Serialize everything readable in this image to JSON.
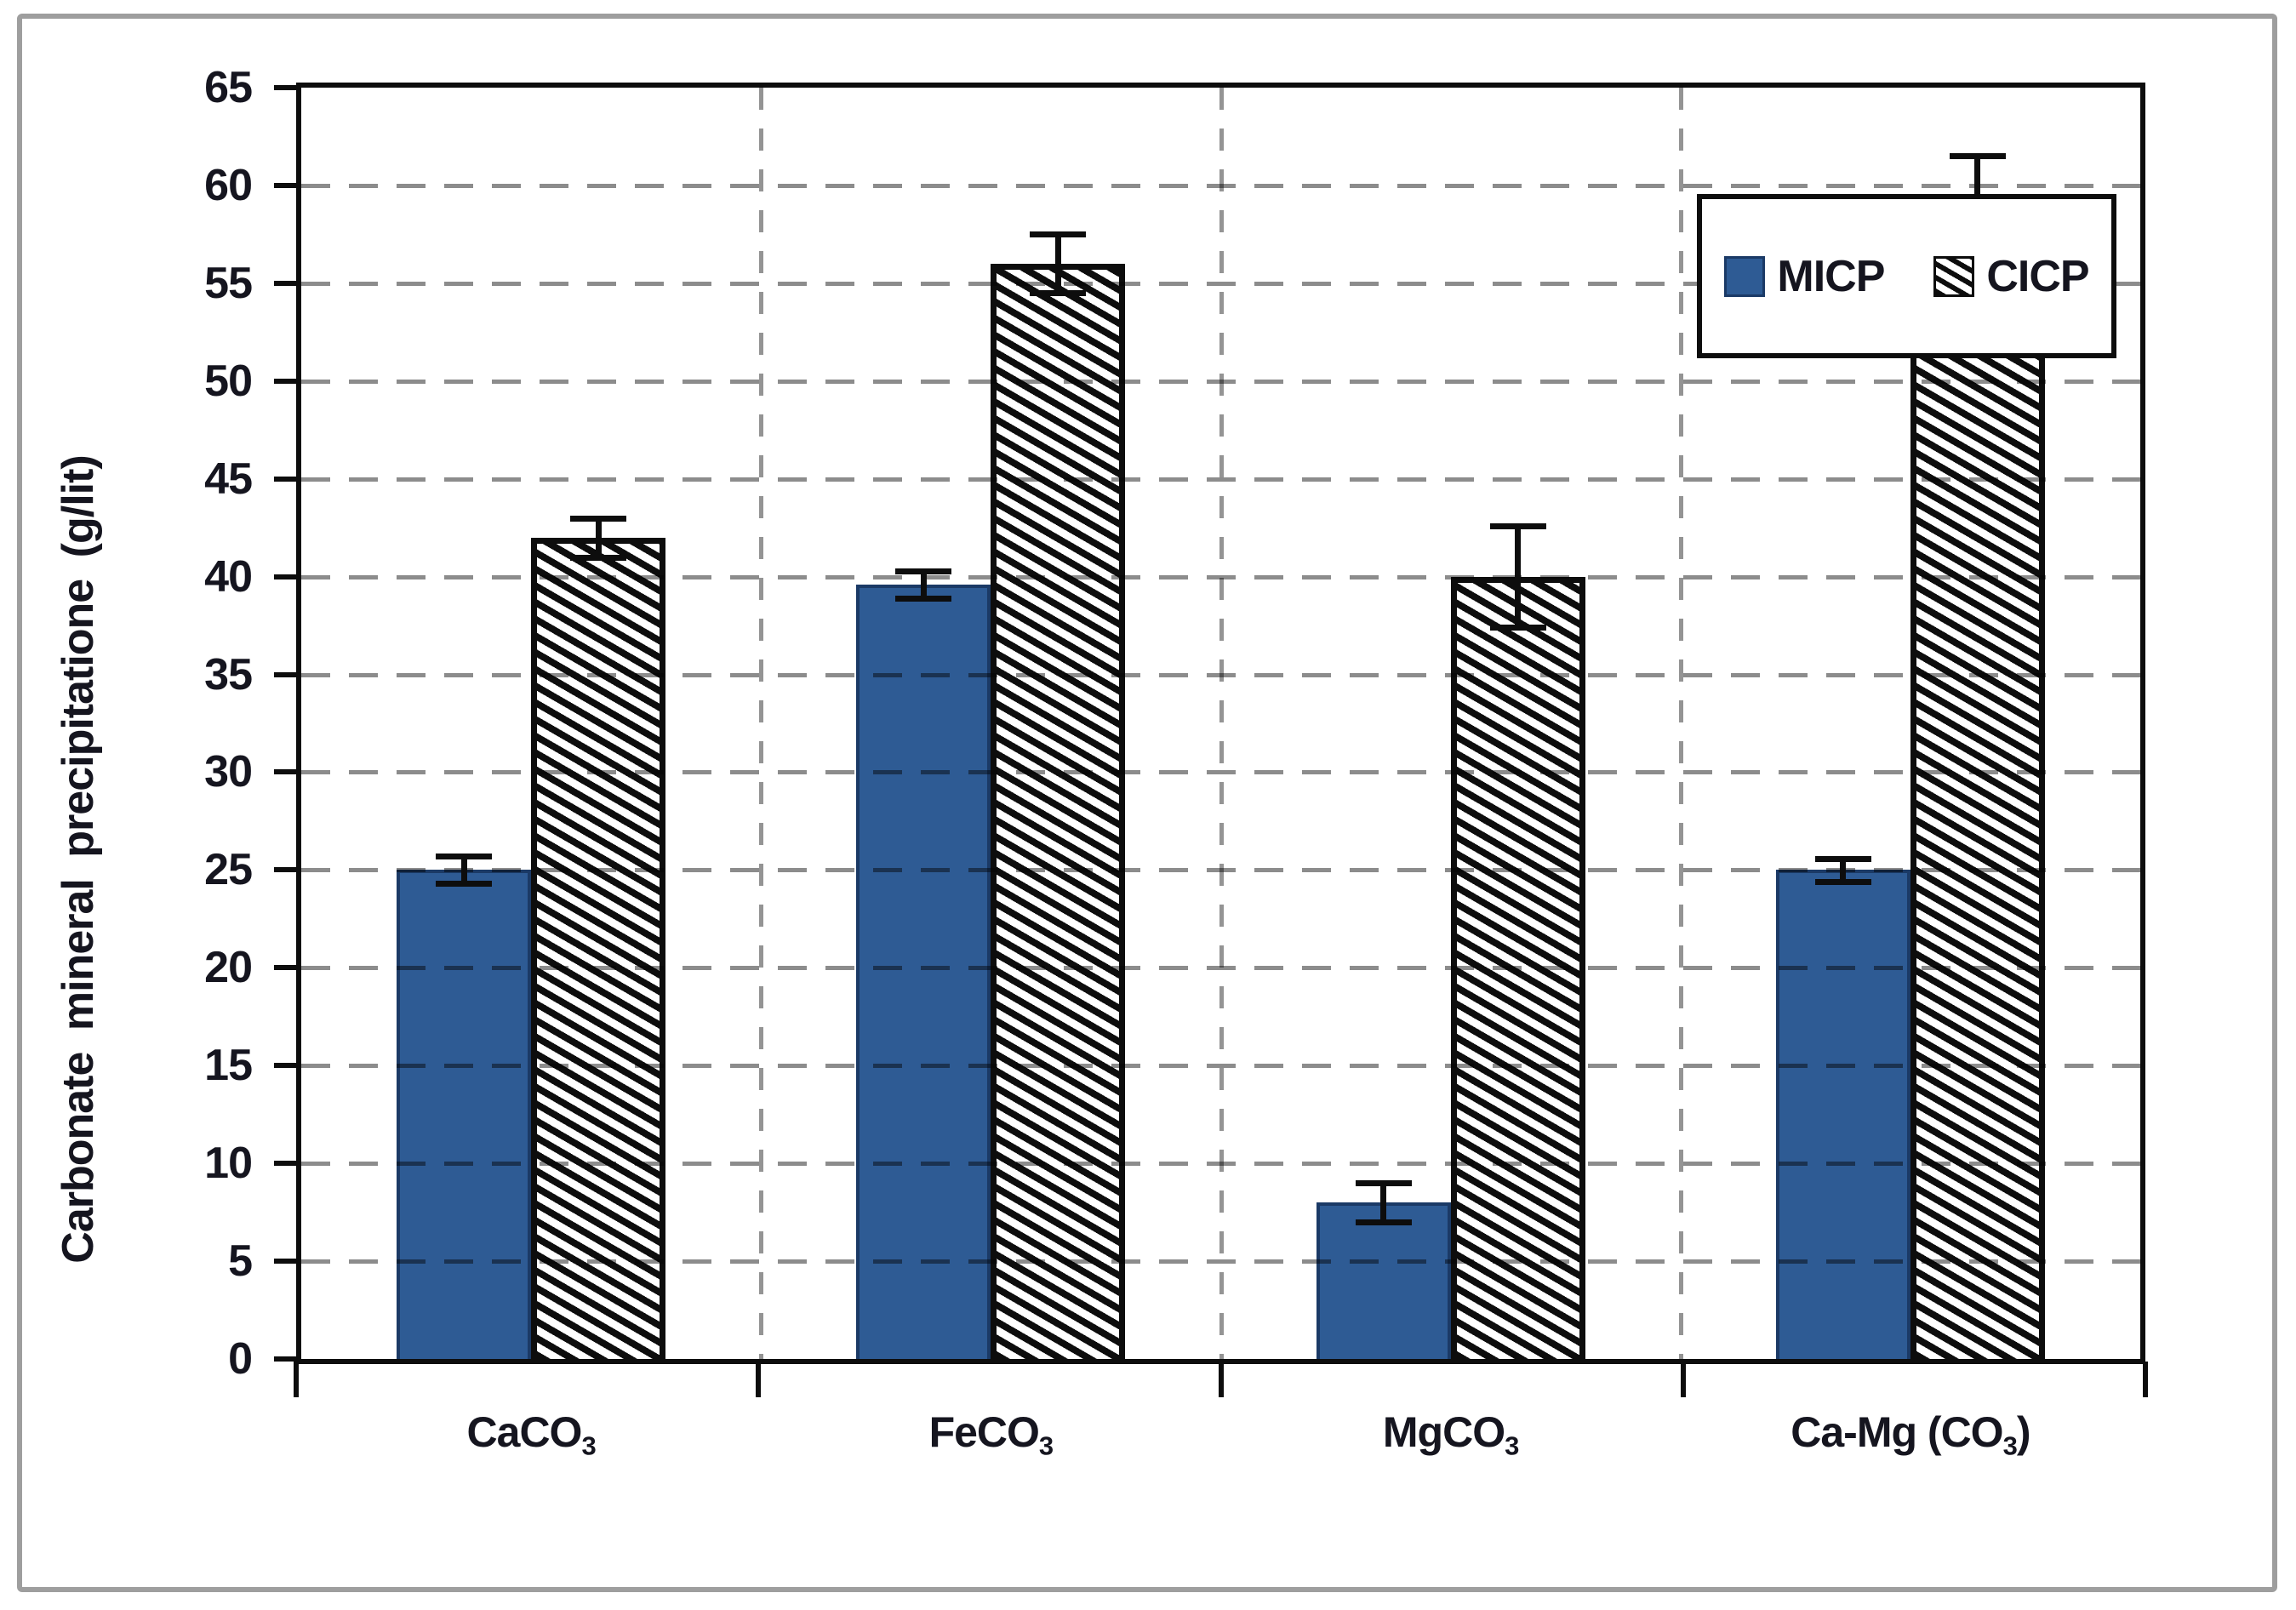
{
  "figure": {
    "ylabel": "Carbonate mineral precipitatione (g/lit)",
    "colors": {
      "micp_fill": "#2E5B94",
      "micp_border": "#1B3A66",
      "hatch_ink": "#0d0d0d",
      "grid_gray": "#8c8c8c",
      "frame_gray": "#9e9e9e"
    }
  },
  "chart_data": {
    "type": "bar",
    "title": "",
    "xlabel": "",
    "ylabel": "Carbonate mineral precipitatione (g/lit)",
    "ylim": [
      0,
      65
    ],
    "ytick_step": 5,
    "yticks": [
      0,
      5,
      10,
      15,
      20,
      25,
      30,
      35,
      40,
      45,
      50,
      55,
      60,
      65
    ],
    "grid": "horizontal dashed every 5 units; vertical dashed category separators",
    "legend_position": "top-right inside plot, boxed",
    "categories": [
      {
        "label": "CaCO3",
        "base": "CaCO",
        "sub": "3",
        "suffix": ""
      },
      {
        "label": "FeCO3",
        "base": "FeCO",
        "sub": "3",
        "suffix": ""
      },
      {
        "label": "MgCO3",
        "base": "MgCO",
        "sub": "3",
        "suffix": ""
      },
      {
        "label": "Ca-Mg (CO3)",
        "base": "Ca-Mg (CO",
        "sub": "3",
        "suffix": ")"
      }
    ],
    "series": [
      {
        "name": "MICP",
        "style": "solid",
        "color": "#2E5B94",
        "values": [
          25,
          39.6,
          8,
          25
        ],
        "errors": [
          0.7,
          0.7,
          1.0,
          0.6
        ]
      },
      {
        "name": "CICP",
        "style": "hatch",
        "color": "black-diagonal-hatch-on-white",
        "values": [
          42,
          56,
          40,
          58
        ],
        "errors": [
          1.0,
          1.5,
          2.6,
          3.5
        ]
      }
    ]
  }
}
